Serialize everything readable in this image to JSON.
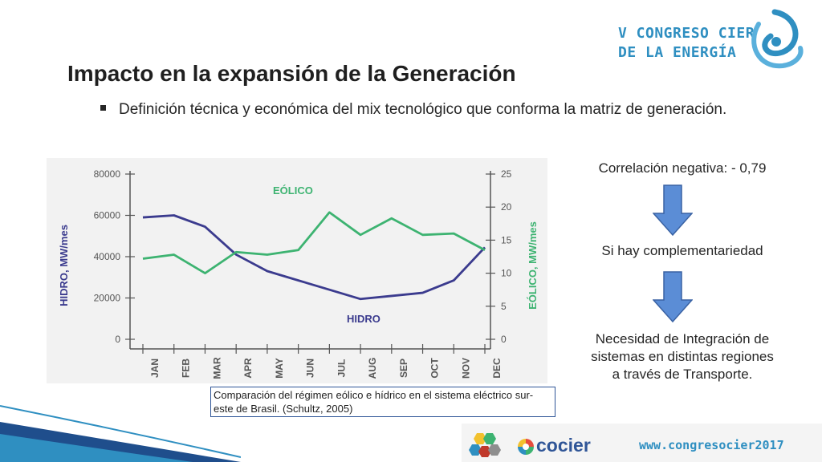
{
  "logo": {
    "line1": "V CONGRESO CIER",
    "line2": "DE LA ENERGÍA",
    "icon": "swirl-logo-icon"
  },
  "title": "Impacto en la expansión de la Generación",
  "bullet": "Definición técnica y económica del mix tecnológico que conforma la matriz de generación.",
  "chart_data": {
    "type": "line",
    "categories": [
      "JAN",
      "FEB",
      "MAR",
      "APR",
      "MAY",
      "JUN",
      "JUL",
      "AUG",
      "SEP",
      "OCT",
      "NOV",
      "DEC"
    ],
    "series": [
      {
        "name": "HIDRO",
        "axis": "left",
        "color": "#3b3b8e",
        "values": [
          59000,
          60000,
          54500,
          41000,
          33000,
          28500,
          24000,
          19500,
          21000,
          22500,
          28500,
          44500
        ]
      },
      {
        "name": "EÓLICO",
        "axis": "right",
        "color": "#3db371",
        "values": [
          12.2,
          12.8,
          10.0,
          13.2,
          12.8,
          13.5,
          19.2,
          15.8,
          18.3,
          15.8,
          16.0,
          13.5
        ]
      }
    ],
    "ylabel_left": "HIDRO, MW/mes",
    "ylabel_right": "EÓLICO, MW/mes",
    "yticks_left": [
      "0",
      "20000",
      "40000",
      "60000",
      "80000"
    ],
    "yticks_right": [
      "0",
      "5",
      "10",
      "15",
      "20",
      "25"
    ],
    "ylim_left": [
      0,
      80000
    ],
    "ylim_right": [
      0,
      25
    ],
    "grid": false,
    "annotations": [
      "EÓLICO",
      "HIDRO"
    ]
  },
  "caption": "Comparación del régimen eólico e hídrico en el sistema eléctrico sur-este de Brasil. (Schultz, 2005)",
  "flow": {
    "step1": "Correlación negativa: - 0,79",
    "step2": "Si hay complementariedad",
    "step3_line1": "Necesidad de Integración de",
    "step3_line2": "sistemas en distintas regiones",
    "step3_line3": "a través de Transporte.",
    "arrow_color": "#5b8dd6"
  },
  "footer": {
    "cocier": "cocier",
    "url": "www.congresocier2017"
  },
  "colors": {
    "accent": "#2f8fc1",
    "navy": "#2f5597"
  }
}
